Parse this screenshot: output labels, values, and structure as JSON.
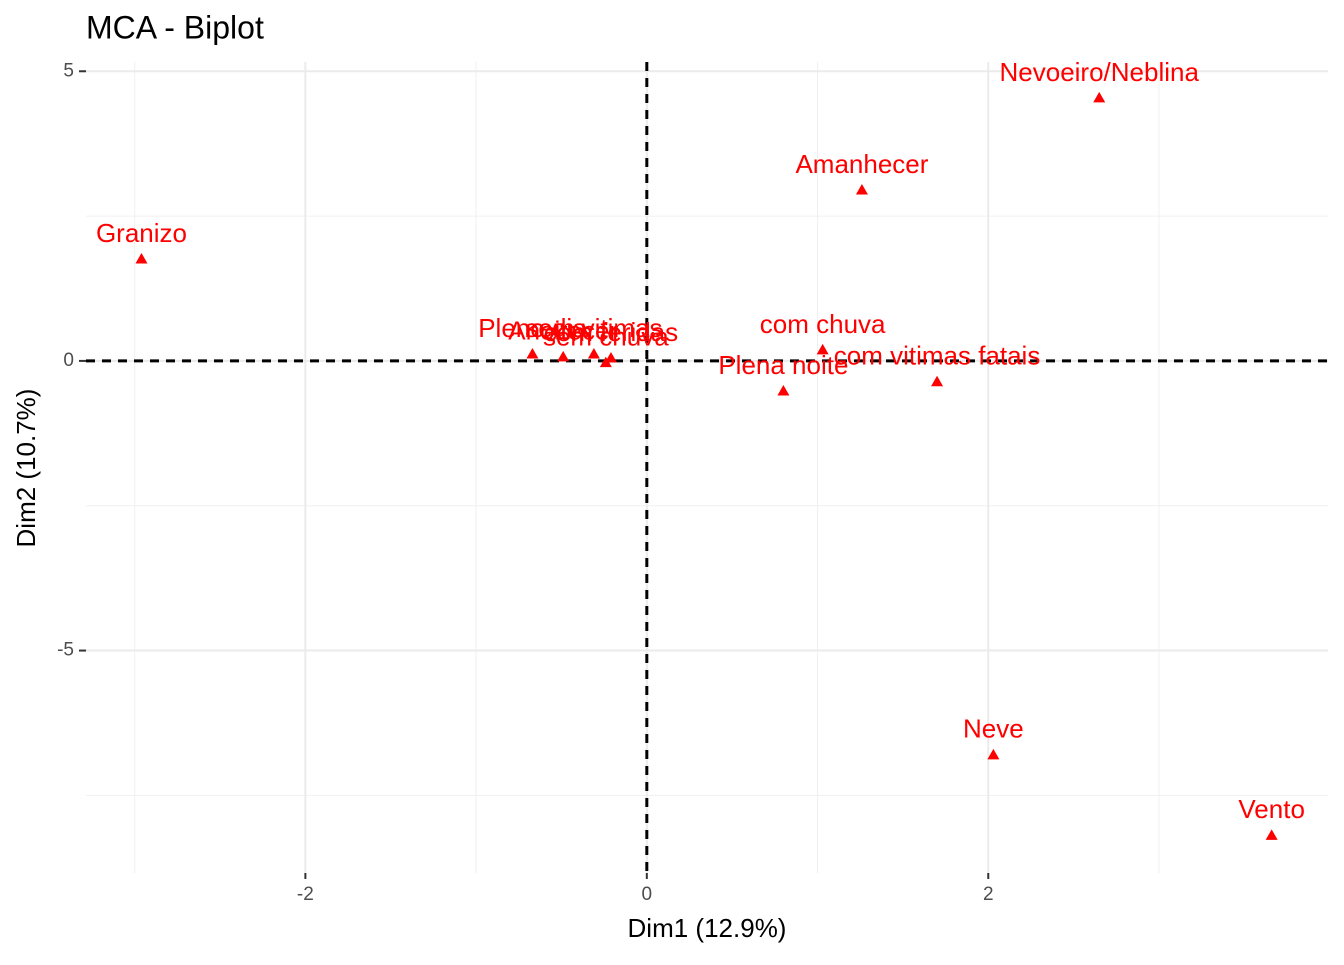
{
  "chart_data": {
    "type": "scatter",
    "title": "MCA - Biplot",
    "xlabel": "Dim1 (12.9%)",
    "ylabel": "Dim2 (10.7%)",
    "xlim": [
      -3.285,
      3.99
    ],
    "ylim": [
      -8.84,
      5.16
    ],
    "xticks": [
      -2,
      0,
      2
    ],
    "yticks": [
      -5,
      0,
      5
    ],
    "x_minor_ticks": [
      -3,
      -1,
      1,
      3
    ],
    "y_minor_ticks": [
      -7.5,
      -2.5,
      2.5
    ],
    "reference_lines": {
      "x": 0,
      "y": 0
    },
    "grid": true,
    "series": [
      {
        "color": "#ff0000",
        "marker": "triangle",
        "labels": [
          "Granizo",
          "Amanhecer",
          "Nevoeiro/Neblina",
          "com chuva",
          "com vitimas fatais",
          "Plena noite",
          "Neve",
          "Vento",
          "Pleno dia",
          "Anoitecer",
          "sem vitimas",
          "com feridas",
          "sem chuva"
        ],
        "x": [
          -2.96,
          1.26,
          2.65,
          1.03,
          1.7,
          0.8,
          2.03,
          3.66,
          -0.67,
          -0.49,
          -0.31,
          -0.21,
          -0.24
        ],
        "values": [
          1.76,
          2.95,
          4.54,
          0.19,
          -0.36,
          -0.52,
          -6.8,
          -8.19,
          0.12,
          0.07,
          0.12,
          0.05,
          -0.03
        ]
      }
    ]
  }
}
